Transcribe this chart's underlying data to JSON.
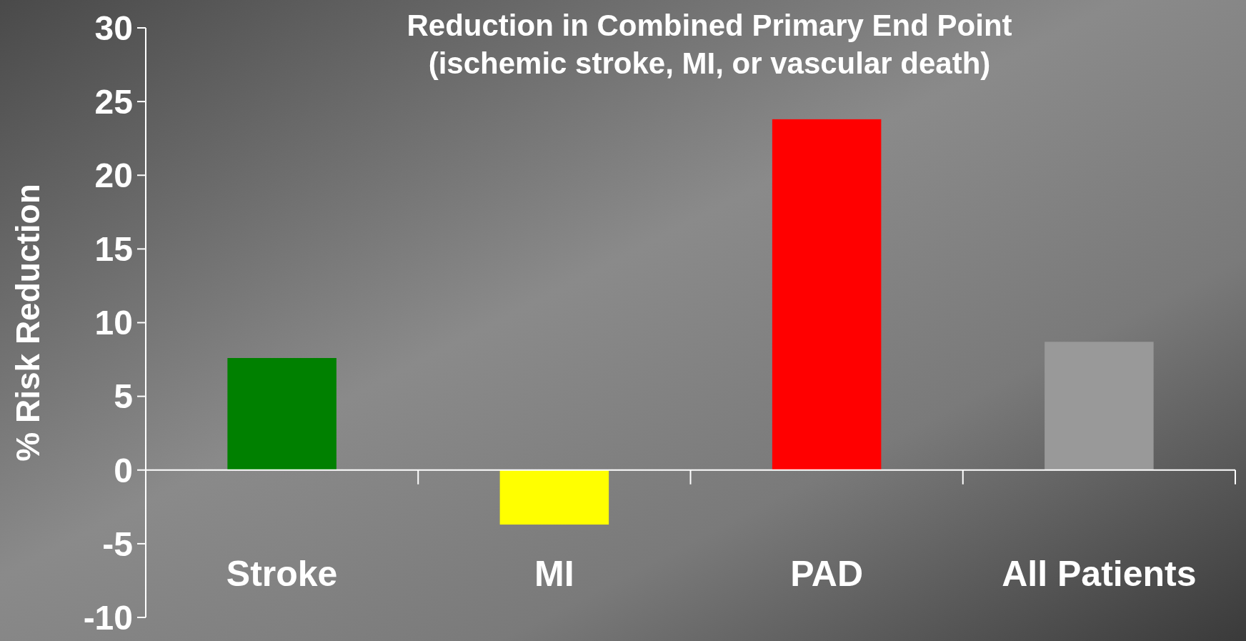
{
  "chart_data": {
    "type": "bar",
    "title": "Reduction in Combined Primary End Point\n(ischemic stroke, MI, or vascular death)",
    "ylabel": "% Risk Reduction",
    "categories": [
      "Stroke",
      "MI",
      "PAD",
      "All Patients"
    ],
    "values": [
      7.6,
      -3.7,
      23.8,
      8.7
    ],
    "colors": [
      "#008000",
      "#ffff00",
      "#ff0000",
      "#999999"
    ],
    "ylim": [
      -10,
      30
    ],
    "yticks": [
      -10,
      -5,
      0,
      5,
      10,
      15,
      20,
      25,
      30
    ]
  }
}
